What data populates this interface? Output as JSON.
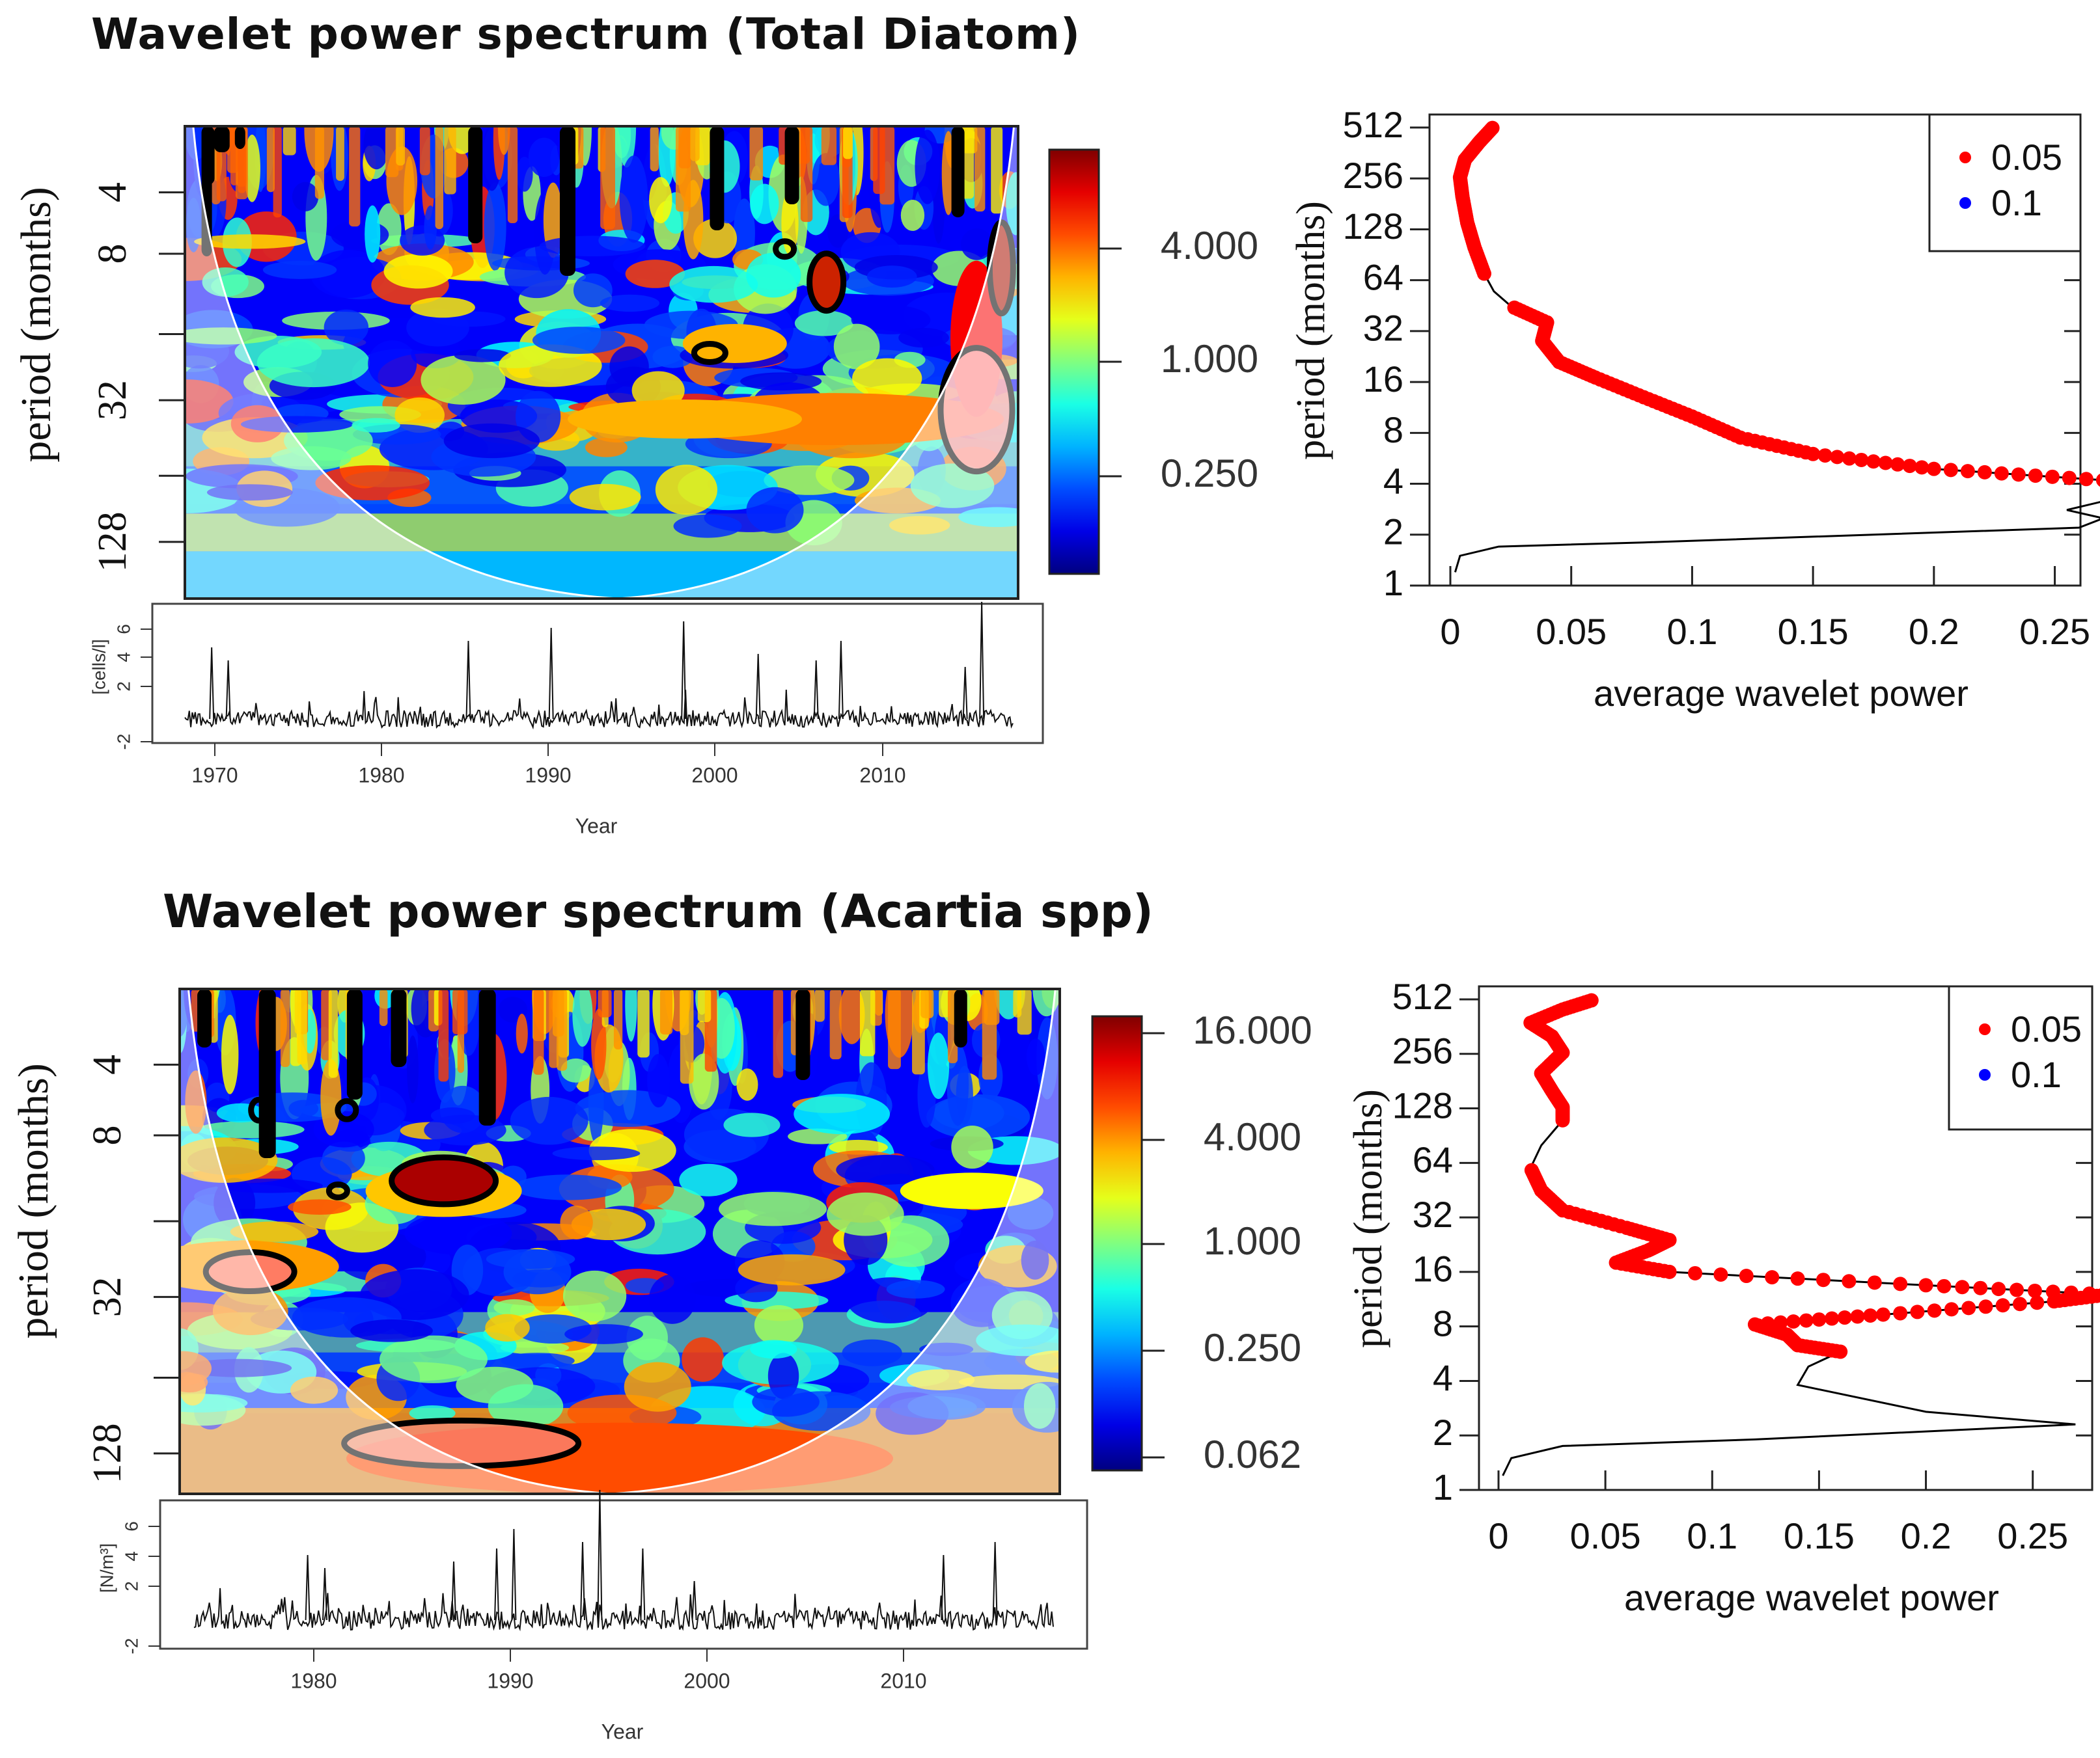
{
  "chart_data": [
    {
      "id": "diatom",
      "type": "heatmap",
      "title": "Wavelet power spectrum (Total Diatom)",
      "ylabel": "period (months)",
      "xlabel": "Year",
      "yticks": [
        "4",
        "8",
        "32",
        "128"
      ],
      "colorbar_ticks": [
        "4.000",
        "1.000",
        "0.250"
      ],
      "series_ylabel": "[cells/l]",
      "series_yticks": [
        "-2",
        "2",
        "4",
        "6"
      ],
      "xticks": [
        "1970",
        "1980",
        "1990",
        "2000",
        "2010"
      ],
      "year_range": [
        1968,
        2017
      ],
      "colors": {
        "low": "#00008f",
        "mid": "#ffff00",
        "high": "#8b0000"
      }
    },
    {
      "id": "diatom-avg",
      "type": "line",
      "xlabel": "average wavelet power",
      "ylabel": "period (months)",
      "xticks": [
        "0",
        "0.05",
        "0.1",
        "0.15",
        "0.2",
        "0.25"
      ],
      "yticks": [
        "1",
        "2",
        "4",
        "8",
        "16",
        "32",
        "64",
        "128",
        "256",
        "512"
      ],
      "xlim": [
        0,
        0.28
      ],
      "legend": [
        {
          "label": "0.05",
          "color": "#ff0000"
        },
        {
          "label": "0.1",
          "color": "#0000ff"
        }
      ],
      "curve": [
        [
          0.002,
          1.2
        ],
        [
          0.004,
          1.5
        ],
        [
          0.02,
          1.7
        ],
        [
          0.08,
          1.8
        ],
        [
          0.26,
          2.2
        ],
        [
          0.27,
          2.5
        ],
        [
          0.255,
          2.8
        ],
        [
          0.272,
          3.2
        ],
        [
          0.275,
          3.7
        ],
        [
          0.27,
          4.2
        ],
        [
          0.2,
          4.9
        ],
        [
          0.15,
          6
        ],
        [
          0.12,
          7.5
        ],
        [
          0.1,
          10
        ],
        [
          0.08,
          13
        ],
        [
          0.06,
          17
        ],
        [
          0.045,
          21
        ],
        [
          0.038,
          28
        ],
        [
          0.04,
          36
        ],
        [
          0.025,
          45
        ],
        [
          0.018,
          55
        ],
        [
          0.014,
          70
        ],
        [
          0.01,
          100
        ],
        [
          0.007,
          140
        ],
        [
          0.005,
          200
        ],
        [
          0.004,
          260
        ],
        [
          0.006,
          330
        ],
        [
          0.012,
          420
        ],
        [
          0.018,
          520
        ]
      ],
      "sig_from": 3.5
    },
    {
      "id": "acartia",
      "type": "heatmap",
      "title": "Wavelet power spectrum (Acartia spp)",
      "ylabel": "period (months)",
      "xlabel": "Year",
      "yticks": [
        "4",
        "8",
        "32",
        "128"
      ],
      "colorbar_ticks": [
        "16.000",
        "4.000",
        "1.000",
        "0.250",
        "0.062"
      ],
      "series_ylabel": "[N/m³]",
      "series_yticks": [
        "-2",
        "2",
        "4",
        "6"
      ],
      "xticks": [
        "1980",
        "1990",
        "2000",
        "2010"
      ],
      "year_range": [
        1973,
        2018
      ],
      "colors": {
        "low": "#00008f",
        "mid": "#ffff00",
        "high": "#8b0000"
      }
    },
    {
      "id": "acartia-avg",
      "type": "line",
      "xlabel": "average wavelet power",
      "ylabel": "period (months)",
      "xticks": [
        "0",
        "0.05",
        "0.1",
        "0.15",
        "0.2",
        "0.25"
      ],
      "yticks": [
        "1",
        "2",
        "4",
        "8",
        "16",
        "32",
        "64",
        "128",
        "256",
        "512"
      ],
      "xlim": [
        0,
        0.29
      ],
      "legend": [
        {
          "label": "0.05",
          "color": "#ff0000"
        },
        {
          "label": "0.1",
          "color": "#0000ff"
        }
      ],
      "curve": [
        [
          0.002,
          1.2
        ],
        [
          0.006,
          1.5
        ],
        [
          0.03,
          1.75
        ],
        [
          0.12,
          1.9
        ],
        [
          0.27,
          2.3
        ],
        [
          0.2,
          2.7
        ],
        [
          0.14,
          3.8
        ],
        [
          0.145,
          4.8
        ],
        [
          0.16,
          5.8
        ],
        [
          0.14,
          6.3
        ],
        [
          0.135,
          7.2
        ],
        [
          0.12,
          8.2
        ],
        [
          0.18,
          9.3
        ],
        [
          0.26,
          11
        ],
        [
          0.285,
          12
        ],
        [
          0.2,
          13.5
        ],
        [
          0.08,
          16
        ],
        [
          0.055,
          18
        ],
        [
          0.07,
          21
        ],
        [
          0.08,
          24
        ],
        [
          0.06,
          28
        ],
        [
          0.03,
          35
        ],
        [
          0.02,
          45
        ],
        [
          0.015,
          60
        ],
        [
          0.02,
          80
        ],
        [
          0.03,
          110
        ],
        [
          0.03,
          130
        ],
        [
          0.025,
          160
        ],
        [
          0.02,
          200
        ],
        [
          0.03,
          260
        ],
        [
          0.025,
          320
        ],
        [
          0.015,
          380
        ],
        [
          0.03,
          450
        ],
        [
          0.045,
          512
        ]
      ],
      "sig_from": 5.2
    }
  ]
}
